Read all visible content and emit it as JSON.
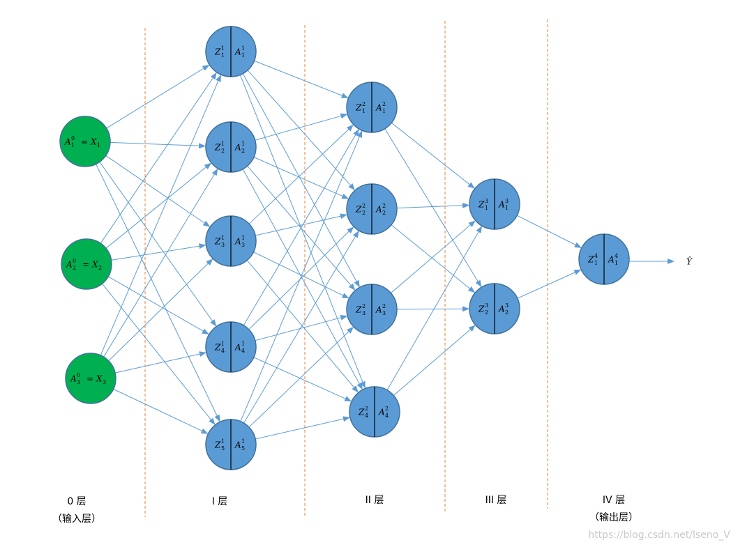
{
  "layers": [
    {
      "label": "0 层",
      "note": "（输入层）",
      "nodes": [
        {
          "a": {
            "base": "A",
            "sup": "0",
            "sub": "1"
          },
          "eq": "=",
          "x": {
            "base": "X",
            "sub": "1"
          }
        },
        {
          "a": {
            "base": "A",
            "sup": "0",
            "sub": "2"
          },
          "eq": "=",
          "x": {
            "base": "X",
            "sub": "2"
          }
        },
        {
          "a": {
            "base": "A",
            "sup": "0",
            "sub": "3"
          },
          "eq": "=",
          "x": {
            "base": "X",
            "sub": "3"
          }
        }
      ]
    },
    {
      "label": "I 层",
      "nodes": [
        {
          "z": {
            "base": "Z",
            "sup": "1",
            "sub": "1"
          },
          "a": {
            "base": "A",
            "sup": "1",
            "sub": "1"
          }
        },
        {
          "z": {
            "base": "Z",
            "sup": "1",
            "sub": "2"
          },
          "a": {
            "base": "A",
            "sup": "1",
            "sub": "2"
          }
        },
        {
          "z": {
            "base": "Z",
            "sup": "1",
            "sub": "3"
          },
          "a": {
            "base": "A",
            "sup": "1",
            "sub": "3"
          }
        },
        {
          "z": {
            "base": "Z",
            "sup": "1",
            "sub": "4"
          },
          "a": {
            "base": "A",
            "sup": "1",
            "sub": "4"
          }
        },
        {
          "z": {
            "base": "Z",
            "sup": "1",
            "sub": "5"
          },
          "a": {
            "base": "A",
            "sup": "1",
            "sub": "5"
          }
        }
      ]
    },
    {
      "label": "II 层",
      "nodes": [
        {
          "z": {
            "base": "Z",
            "sup": "2",
            "sub": "1"
          },
          "a": {
            "base": "A",
            "sup": "2",
            "sub": "1"
          }
        },
        {
          "z": {
            "base": "Z",
            "sup": "2",
            "sub": "2"
          },
          "a": {
            "base": "A",
            "sup": "2",
            "sub": "2"
          }
        },
        {
          "z": {
            "base": "Z",
            "sup": "2",
            "sub": "3"
          },
          "a": {
            "base": "A",
            "sup": "2",
            "sub": "3"
          }
        },
        {
          "z": {
            "base": "Z",
            "sup": "2",
            "sub": "4"
          },
          "a": {
            "base": "A",
            "sup": "2",
            "sub": "4"
          }
        }
      ]
    },
    {
      "label": "III 层",
      "nodes": [
        {
          "z": {
            "base": "Z",
            "sup": "3",
            "sub": "1"
          },
          "a": {
            "base": "A",
            "sup": "3",
            "sub": "1"
          }
        },
        {
          "z": {
            "base": "Z",
            "sup": "3",
            "sub": "2"
          },
          "a": {
            "base": "A",
            "sup": "3",
            "sub": "2"
          }
        }
      ]
    },
    {
      "label": "IV 层",
      "note": "（输出层）",
      "nodes": [
        {
          "z": {
            "base": "Z",
            "sup": "4",
            "sub": "1"
          },
          "a": {
            "base": "A",
            "sup": "4",
            "sub": "1"
          }
        }
      ]
    }
  ],
  "output": {
    "label": "Ŷ"
  },
  "watermark": "https://blog.csdn.net/lseno_V"
}
